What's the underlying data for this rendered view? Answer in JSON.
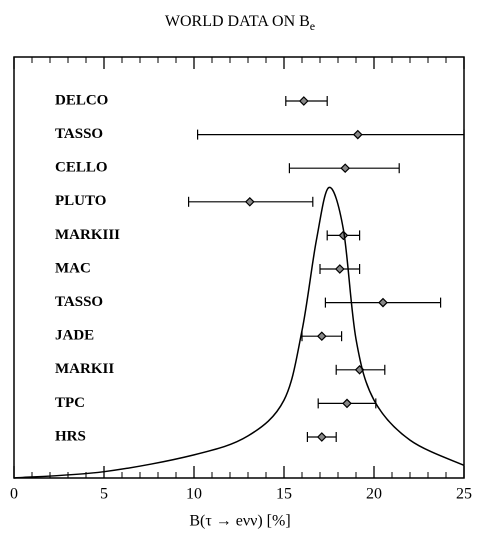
{
  "chart_data": {
    "type": "errorbar",
    "title": "WORLD DATA ON B",
    "title_subscript": "e",
    "xlabel": "B(τ → eνν) [%]",
    "categories": [
      "DELCO",
      "TASSO",
      "CELLO",
      "PLUTO",
      "MARKIII",
      "MAC",
      "TASSO",
      "JADE",
      "MARKII",
      "TPC",
      "HRS"
    ],
    "values": [
      16.1,
      19.1,
      18.4,
      13.1,
      18.3,
      18.1,
      20.5,
      17.1,
      19.2,
      18.5,
      17.1
    ],
    "lower": [
      15.1,
      10.2,
      15.3,
      9.7,
      17.4,
      17.0,
      17.3,
      16.0,
      17.9,
      16.9,
      16.3
    ],
    "upper": [
      17.4,
      25,
      21.4,
      16.6,
      19.2,
      19.2,
      23.7,
      18.2,
      20.6,
      20.1,
      17.9
    ],
    "curve": {
      "x": [
        0,
        5,
        10,
        13,
        15,
        16,
        16.8,
        17.5,
        18.3,
        19,
        20,
        22,
        25
      ],
      "y": [
        0,
        0.015,
        0.055,
        0.1,
        0.185,
        0.35,
        0.565,
        0.69,
        0.59,
        0.33,
        0.185,
        0.09,
        0.03
      ]
    },
    "xlim": [
      0,
      25
    ],
    "ylim": [
      0,
      1
    ],
    "xticks": [
      0,
      5,
      10,
      15,
      20,
      25
    ],
    "xminorticks": [
      1,
      2,
      3,
      4,
      6,
      7,
      8,
      9,
      11,
      12,
      13,
      14,
      16,
      17,
      18,
      19,
      21,
      22,
      23,
      24
    ],
    "color": "#000000"
  }
}
